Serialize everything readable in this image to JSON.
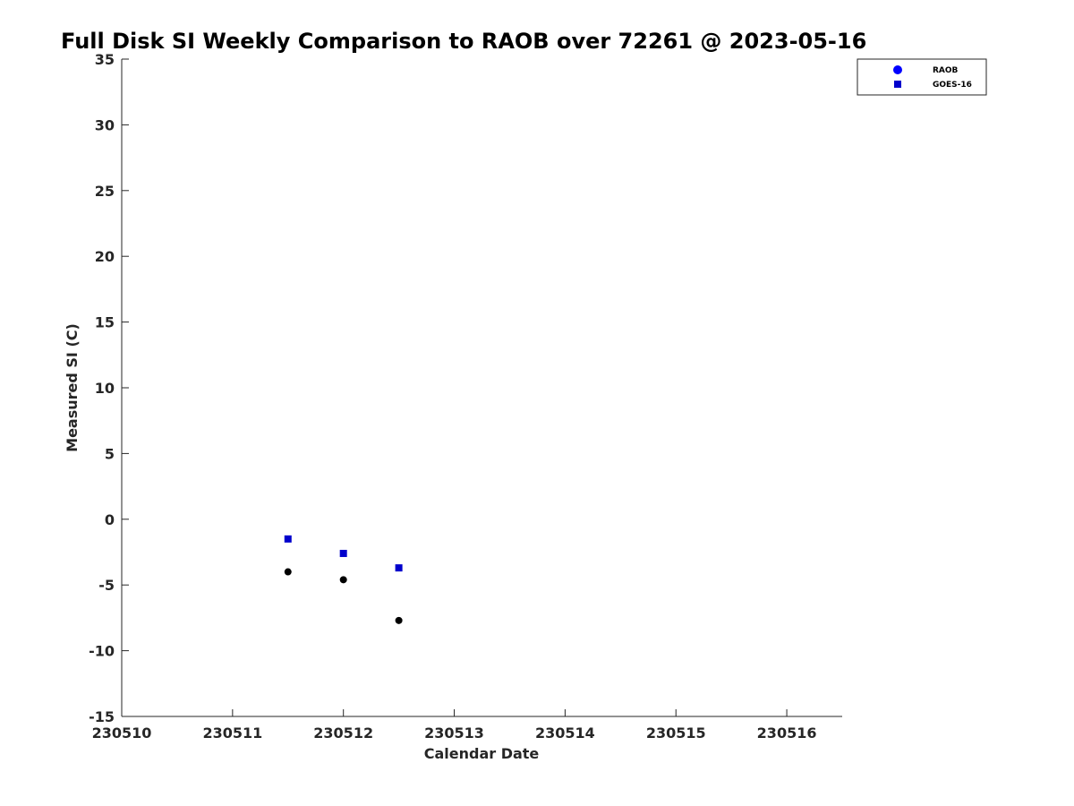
{
  "chart_data": {
    "type": "scatter",
    "title": "Full Disk SI Weekly Comparison to RAOB over 72261 @ 2023-05-16",
    "xlabel": "Calendar Date",
    "ylabel": "Measured SI (C)",
    "xlim": [
      230510,
      230516.5
    ],
    "ylim": [
      -15,
      35
    ],
    "x_ticks": [
      230510,
      230511,
      230512,
      230513,
      230514,
      230515,
      230516
    ],
    "x_tick_labels": [
      "230510",
      "230511",
      "230512",
      "230513",
      "230514",
      "230515",
      "230516"
    ],
    "y_ticks": [
      -15,
      -10,
      -5,
      0,
      5,
      10,
      15,
      20,
      25,
      30,
      35
    ],
    "y_tick_labels": [
      "-15",
      "-10",
      "-5",
      "0",
      "5",
      "10",
      "15",
      "20",
      "25",
      "30",
      "35"
    ],
    "grid": false,
    "legend_position": "outside-top-right",
    "legend": [
      {
        "name": "RAOB",
        "marker": "circle",
        "color": "#0000ff"
      },
      {
        "name": "GOES-16",
        "marker": "square",
        "color": "#0000cc"
      }
    ],
    "series": [
      {
        "name": "RAOB",
        "marker": "circle",
        "color": "#000000",
        "x": [
          230511.5,
          230512.0,
          230512.5
        ],
        "y": [
          -4.0,
          -4.6,
          -7.7
        ]
      },
      {
        "name": "GOES-16",
        "marker": "square",
        "color": "#0000cc",
        "x": [
          230511.5,
          230512.0,
          230512.5
        ],
        "y": [
          -1.5,
          -2.6,
          -3.7
        ]
      }
    ]
  }
}
